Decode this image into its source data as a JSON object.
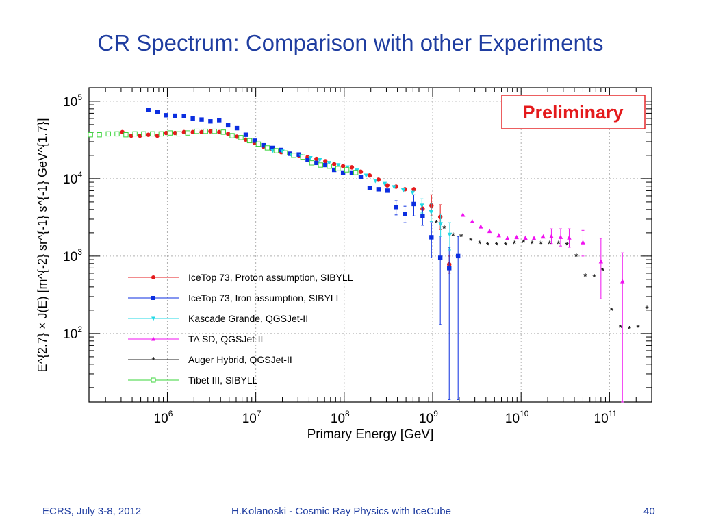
{
  "slide": {
    "title": "CR Spectrum: Comparison with other Experiments",
    "footer_left": "ECRS, July 3-8, 2012",
    "footer_center": "H.Kolanoski - Cosmic Ray Physics with IceCube",
    "footer_right": "40"
  },
  "colors": {
    "title": "#1f3da0",
    "preliminary": "#e41a1c",
    "icetop_proton": "#e41a1c",
    "icetop_iron": "#0b2ee0",
    "kascade": "#22d9e6",
    "ta": "#f012f0",
    "auger": "#222222",
    "tibet": "#3ad43a"
  },
  "chart_data": {
    "type": "scatter",
    "title": "",
    "annotation": "Preliminary",
    "xlabel": "Primary Energy [GeV]",
    "ylabel": "E^{2.7} × J(E)  [m^{-2} sr^{-1} s^{-1} GeV^{1.7}]",
    "xscale": "log",
    "yscale": "log",
    "xlim": [
      130000,
      300000000000
    ],
    "ylim": [
      13,
      150000
    ],
    "grid": true,
    "legend_position": "left",
    "x_ticks": [
      {
        "value": 1000000,
        "base": "10",
        "exp": "6"
      },
      {
        "value": 10000000,
        "base": "10",
        "exp": "7"
      },
      {
        "value": 100000000,
        "base": "10",
        "exp": "8"
      },
      {
        "value": 1000000000,
        "base": "10",
        "exp": "9"
      },
      {
        "value": 10000000000,
        "base": "10",
        "exp": "10"
      },
      {
        "value": 100000000000,
        "base": "10",
        "exp": "11"
      }
    ],
    "y_ticks": [
      {
        "value": 100,
        "base": "10",
        "exp": "2"
      },
      {
        "value": 1000,
        "base": "10",
        "exp": "3"
      },
      {
        "value": 10000,
        "base": "10",
        "exp": "4"
      },
      {
        "value": 100000,
        "base": "10",
        "exp": "5"
      }
    ],
    "series": [
      {
        "name": "IceTop 73, Proton assumption, SIBYLL",
        "marker": "circle",
        "color": "#e41a1c",
        "points": [
          [
            310000.0,
            40000
          ],
          [
            390000.0,
            36000
          ],
          [
            490000.0,
            36000
          ],
          [
            610000.0,
            37000
          ],
          [
            770000.0,
            36000
          ],
          [
            970000.0,
            39000
          ],
          [
            1220000.0,
            39000
          ],
          [
            1540000.0,
            40000
          ],
          [
            1940000.0,
            40000
          ],
          [
            2440000.0,
            40000
          ],
          [
            3070000.0,
            41000
          ],
          [
            3860000.0,
            40000
          ],
          [
            4860000.0,
            38000
          ],
          [
            6120000.0,
            35000
          ],
          [
            7700000.0,
            32000
          ],
          [
            9700000.0,
            29000
          ],
          [
            12200000.0,
            26000
          ],
          [
            15400000.0,
            24000
          ],
          [
            19400000.0,
            22000
          ],
          [
            24400000.0,
            21000
          ],
          [
            30700000.0,
            20000
          ],
          [
            38600000.0,
            19000
          ],
          [
            48600000.0,
            18000
          ],
          [
            61200000.0,
            16800
          ],
          [
            77000000.0,
            15400
          ],
          [
            97000000.0,
            14500
          ],
          [
            122000000.0,
            14000
          ],
          [
            154000000.0,
            12300
          ],
          [
            194000000.0,
            11000
          ],
          [
            244000000.0,
            9700
          ],
          [
            307000000.0,
            8200
          ],
          [
            386000000.0,
            7900
          ],
          [
            486000000.0,
            7300
          ],
          [
            612000000.0,
            7300
          ],
          [
            770000000.0,
            4100
          ],
          [
            970000000.0,
            4500
          ],
          [
            1220000000.0,
            3200
          ],
          [
            1540000000.0,
            780
          ]
        ],
        "errors": [
          {
            "x": 770000000.0,
            "lo": 3100,
            "hi": 4700
          },
          {
            "x": 970000000.0,
            "lo": 3300,
            "hi": 6200
          },
          {
            "x": 1220000000.0,
            "lo": 2200,
            "hi": 4600
          },
          {
            "x": 1540000000.0,
            "lo": 600,
            "hi": 1000
          }
        ]
      },
      {
        "name": "IceTop 73, Iron assumption, SIBYLL",
        "marker": "square",
        "color": "#0b2ee0",
        "points": [
          [
            610000.0,
            77000
          ],
          [
            770000.0,
            73000
          ],
          [
            970000.0,
            66000
          ],
          [
            1220000.0,
            65000
          ],
          [
            1540000.0,
            64000
          ],
          [
            1940000.0,
            60000
          ],
          [
            2440000.0,
            58000
          ],
          [
            3070000.0,
            55000
          ],
          [
            3860000.0,
            57000
          ],
          [
            4860000.0,
            49000
          ],
          [
            6120000.0,
            45000
          ],
          [
            7700000.0,
            37000
          ],
          [
            9700000.0,
            31000
          ],
          [
            12200000.0,
            27000
          ],
          [
            15400000.0,
            25000
          ],
          [
            19400000.0,
            23500
          ],
          [
            24400000.0,
            21000
          ],
          [
            30700000.0,
            20500
          ],
          [
            38600000.0,
            17500
          ],
          [
            48600000.0,
            16000
          ],
          [
            61200000.0,
            15000
          ],
          [
            77000000.0,
            13000
          ],
          [
            97000000.0,
            12000
          ],
          [
            122000000.0,
            12000
          ],
          [
            154000000.0,
            10500
          ],
          [
            194000000.0,
            7600
          ],
          [
            244000000.0,
            7300
          ],
          [
            307000000.0,
            7000
          ],
          [
            386000000.0,
            4300
          ],
          [
            486000000.0,
            3500
          ],
          [
            612000000.0,
            4700
          ],
          [
            770000000.0,
            3300
          ],
          [
            970000000.0,
            1750
          ],
          [
            1220000000.0,
            950
          ],
          [
            1540000000.0,
            700
          ],
          [
            1940000000.0,
            1000
          ]
        ],
        "errors": [
          {
            "x": 386000000.0,
            "lo": 3400,
            "hi": 5200
          },
          {
            "x": 486000000.0,
            "lo": 2700,
            "hi": 4400
          },
          {
            "x": 612000000.0,
            "lo": 3300,
            "hi": 6200
          },
          {
            "x": 770000000.0,
            "lo": 2500,
            "hi": 4200
          },
          {
            "x": 970000000.0,
            "lo": 950,
            "hi": 2700
          },
          {
            "x": 1220000000.0,
            "lo": 130,
            "hi": 1800
          },
          {
            "x": 1540000000.0,
            "lo": 14,
            "hi": 1300
          },
          {
            "x": 1940000000.0,
            "lo": 14,
            "hi": 1800
          }
        ]
      },
      {
        "name": "Kascade Grande, QGSJet-II",
        "marker": "triangle-down",
        "color": "#22d9e6",
        "points": [
          [
            15500000.0,
            23000
          ],
          [
            20000000.0,
            22500
          ],
          [
            25500000.0,
            20000
          ],
          [
            32500000.0,
            19500
          ],
          [
            41500000.0,
            18500
          ],
          [
            53000000.0,
            17500
          ],
          [
            67500000.0,
            16000
          ],
          [
            86000000.0,
            15000
          ],
          [
            109000000.0,
            14000
          ],
          [
            139000000.0,
            12800
          ],
          [
            177000000.0,
            11000
          ],
          [
            225000000.0,
            9400
          ],
          [
            287000000.0,
            8600
          ],
          [
            366000000.0,
            7800
          ],
          [
            466000000.0,
            7100
          ],
          [
            594000000.0,
            6600
          ],
          [
            756000000.0,
            4500
          ],
          [
            963000000.0,
            3700
          ],
          [
            1230000000.0,
            2600
          ],
          [
            1560000000.0,
            1900
          ]
        ],
        "errors": [
          {
            "x": 756000000.0,
            "lo": 3600,
            "hi": 5500
          },
          {
            "x": 963000000.0,
            "lo": 2800,
            "hi": 4800
          },
          {
            "x": 1230000000.0,
            "lo": 1800,
            "hi": 3500
          },
          {
            "x": 1560000000.0,
            "lo": 1200,
            "hi": 2700
          }
        ]
      },
      {
        "name": "TA SD, QGSJet-II",
        "marker": "triangle-up",
        "color": "#f012f0",
        "points": [
          [
            2200000000.0,
            3400
          ],
          [
            2800000000.0,
            2800
          ],
          [
            3500000000.0,
            2400
          ],
          [
            4400000000.0,
            2100
          ],
          [
            5600000000.0,
            1850
          ],
          [
            7000000000.0,
            1700
          ],
          [
            8900000000.0,
            1750
          ],
          [
            11200000000.0,
            1720
          ],
          [
            14000000000.0,
            1700
          ],
          [
            17800000000.0,
            1780
          ],
          [
            22000000000.0,
            1800
          ],
          [
            28000000000.0,
            1760
          ],
          [
            35000000000.0,
            1730
          ],
          [
            50000000000.0,
            1500
          ],
          [
            80000000000.0,
            850
          ],
          [
            140000000000.0,
            470
          ]
        ],
        "errors": [
          {
            "x": 22000000000.0,
            "lo": 1450,
            "hi": 2250
          },
          {
            "x": 28000000000.0,
            "lo": 1350,
            "hi": 2250
          },
          {
            "x": 35000000000.0,
            "lo": 1300,
            "hi": 2250
          },
          {
            "x": 50000000000.0,
            "lo": 1000,
            "hi": 2150
          },
          {
            "x": 80000000000.0,
            "lo": 280,
            "hi": 1700
          },
          {
            "x": 140000000000.0,
            "lo": 13,
            "hi": 1100
          }
        ]
      },
      {
        "name": "Auger Hybrid, QGSJet-II",
        "marker": "star",
        "color": "#222222",
        "points": [
          [
            1100000000.0,
            2700
          ],
          [
            1350000000.0,
            2300
          ],
          [
            1700000000.0,
            1850
          ],
          [
            2100000000.0,
            1800
          ],
          [
            2700000000.0,
            1600
          ],
          [
            3400000000.0,
            1450
          ],
          [
            4200000000.0,
            1400
          ],
          [
            5300000000.0,
            1400
          ],
          [
            6700000000.0,
            1400
          ],
          [
            8400000000.0,
            1450
          ],
          [
            10600000000.0,
            1500
          ],
          [
            13300000000.0,
            1450
          ],
          [
            16800000000.0,
            1450
          ],
          [
            21000000000.0,
            1450
          ],
          [
            26500000000.0,
            1450
          ],
          [
            33000000000.0,
            1400
          ],
          [
            42000000000.0,
            1000
          ],
          [
            53000000000.0,
            550
          ],
          [
            67000000000.0,
            540
          ],
          [
            84000000000.0,
            650
          ],
          [
            106000000000.0,
            200
          ],
          [
            133000000000.0,
            120
          ],
          [
            168000000000.0,
            115
          ],
          [
            210000000000.0,
            120
          ],
          [
            265000000000.0,
            210
          ],
          [
            330000000000.0,
            290
          ]
        ]
      },
      {
        "name": "Tibet III, SIBYLL",
        "marker": "open-square",
        "color": "#3ad43a",
        "points": [
          [
            135000.0,
            37000
          ],
          [
            170000.0,
            37000
          ],
          [
            215000.0,
            38000
          ],
          [
            270000.0,
            38000
          ],
          [
            340000.0,
            37000
          ],
          [
            430000.0,
            38000
          ],
          [
            540000.0,
            38000
          ],
          [
            680000.0,
            38000
          ],
          [
            850000.0,
            38000
          ],
          [
            1070000.0,
            39000
          ],
          [
            1350000.0,
            38000
          ],
          [
            1700000.0,
            39000
          ],
          [
            2150000.0,
            41000
          ],
          [
            2700000.0,
            41000
          ],
          [
            3400000.0,
            41000
          ],
          [
            4300000.0,
            40000
          ],
          [
            5400000.0,
            36000
          ],
          [
            6800000.0,
            34000
          ],
          [
            8500000.0,
            31000
          ],
          [
            10700000.0,
            28000
          ],
          [
            13500000.0,
            25000
          ],
          [
            17000000.0,
            23000
          ],
          [
            21500000.0,
            21500
          ],
          [
            27000000.0,
            20000
          ],
          [
            34000000.0,
            19000
          ],
          [
            43000000.0,
            16000
          ],
          [
            54000000.0,
            15000
          ],
          [
            68000000.0,
            14500
          ],
          [
            85000000.0,
            13500
          ],
          [
            107000000.0,
            13000
          ],
          [
            135000000.0,
            12000
          ]
        ]
      }
    ]
  }
}
